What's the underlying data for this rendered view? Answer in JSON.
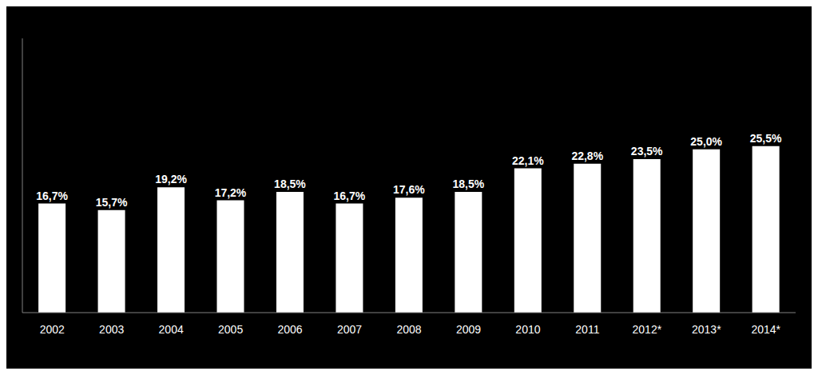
{
  "chart_data": {
    "type": "bar",
    "categories": [
      "2002",
      "2003",
      "2004",
      "2005",
      "2006",
      "2007",
      "2008",
      "2009",
      "2010",
      "2011",
      "2012*",
      "2013*",
      "2014*"
    ],
    "values": [
      16.7,
      15.7,
      19.2,
      17.2,
      18.5,
      16.7,
      17.6,
      18.5,
      22.1,
      22.8,
      23.5,
      25.0,
      25.5
    ],
    "value_labels": [
      "16,7%",
      "15,7%",
      "19,2%",
      "17,2%",
      "18,5%",
      "16,7%",
      "17,6%",
      "18,5%",
      "22,1%",
      "22,8%",
      "23,5%",
      "25,0%",
      "25,5%"
    ],
    "color": "#ffffff",
    "ylim": [
      0,
      42
    ],
    "data_labels": true,
    "tick_labels": "x",
    "grid": false
  }
}
